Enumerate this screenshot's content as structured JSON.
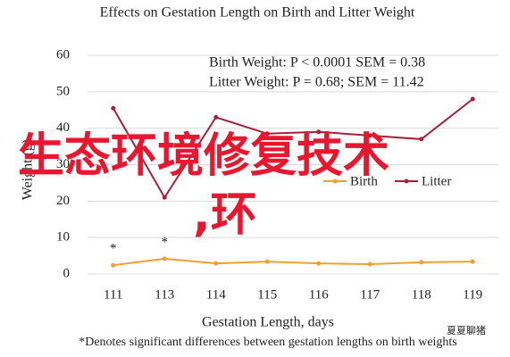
{
  "chart_data": {
    "type": "line",
    "title": "Effects on Gestation Length on Birth and Litter Weight",
    "x_label": "Gestation Length, days",
    "y_label": "Weight (g)",
    "categories": [
      "111",
      "113",
      "114",
      "115",
      "116",
      "117",
      "118",
      "119"
    ],
    "series": [
      {
        "name": "Birth",
        "color": "#f0a030",
        "values": [
          2.4,
          4.2,
          2.9,
          3.4,
          2.9,
          2.7,
          3.2,
          3.4
        ]
      },
      {
        "name": "Litter",
        "color": "#a8203a",
        "values": [
          45.5,
          21,
          43,
          38.5,
          39,
          38,
          37,
          48
        ]
      }
    ],
    "significance_labels": [
      "*",
      "*",
      null,
      null,
      null,
      null,
      null,
      null
    ],
    "annotations": [
      "Birth Weight: P < 0.0001 SEM = 0.38",
      "Litter Weight: P = 0.68; SEM = 11.42"
    ],
    "footnote": "*Denotes significant differences between gestation lengths on birth weights",
    "ylim": [
      0,
      60
    ],
    "yticks": [
      0,
      10,
      20,
      30,
      40,
      50,
      60
    ],
    "grid": true
  },
  "overlay": [
    "生态环境修复技术",
    ",环"
  ],
  "watermark": "夏夏聊猪"
}
